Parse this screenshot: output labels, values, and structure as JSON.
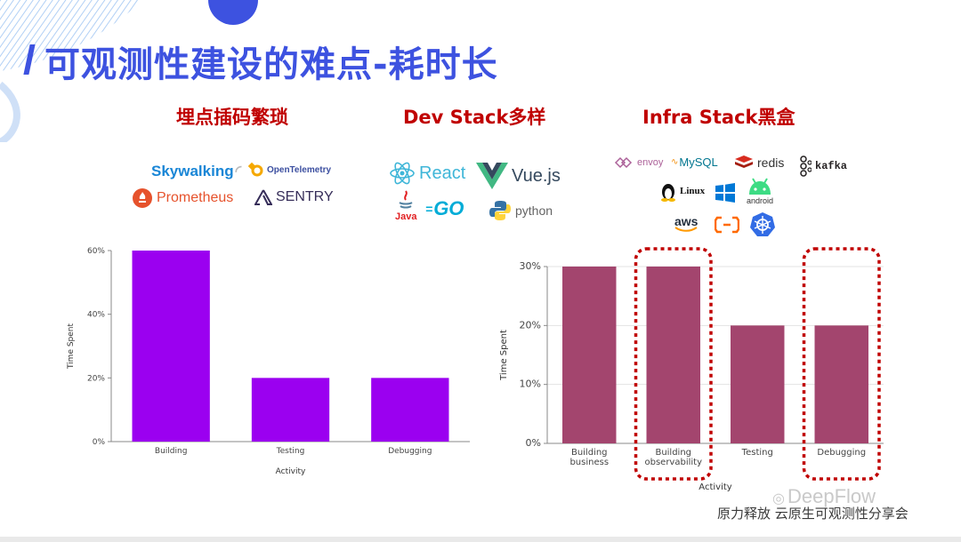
{
  "slide": {
    "title": "可观测性建设的难点-耗时长",
    "footer": "原力释放 云原生可观测性分享会",
    "brand": "DeepFlow"
  },
  "sections": [
    {
      "heading": "埋点插码繁琐",
      "logos": [
        {
          "name": "skywalking-logo",
          "text": "Skywalking",
          "color": "#1a86d6"
        },
        {
          "name": "opentelemetry-logo",
          "text": "OpenTelemetry",
          "color": "#3c4fa0"
        },
        {
          "name": "prometheus-logo",
          "text": "Prometheus",
          "color": "#e6522c"
        },
        {
          "name": "sentry-logo",
          "text": "SENTRY",
          "color": "#362d59"
        }
      ]
    },
    {
      "heading": "Dev Stack多样",
      "logos": [
        {
          "name": "react-logo",
          "text": "React",
          "color": "#3fb6d8"
        },
        {
          "name": "vuejs-logo",
          "text": "Vue.js",
          "color": "#35495e"
        },
        {
          "name": "java-logo",
          "text": "Java",
          "color": "#e11f21"
        },
        {
          "name": "go-logo",
          "text": "GO",
          "color": "#00acd7"
        },
        {
          "name": "python-logo",
          "text": "python",
          "color": "#646464"
        }
      ]
    },
    {
      "heading": "Infra Stack黑盒",
      "logos": [
        {
          "name": "envoy-logo",
          "text": "envoy",
          "color": "#ac6199"
        },
        {
          "name": "mysql-logo",
          "text": "MySQL",
          "color": "#00758f"
        },
        {
          "name": "redis-logo",
          "text": "redis",
          "color": "#d82c20"
        },
        {
          "name": "kafka-logo",
          "text": "kafka",
          "color": "#231f20"
        },
        {
          "name": "linux-logo",
          "text": "Linux",
          "color": "#111111"
        },
        {
          "name": "windows-logo",
          "text": "",
          "color": "#0078d6"
        },
        {
          "name": "android-logo",
          "text": "android",
          "color": "#3ddc84"
        },
        {
          "name": "aws-logo",
          "text": "aws",
          "color": "#232f3e"
        },
        {
          "name": "alibaba-cloud-logo",
          "text": "",
          "color": "#ff6a00"
        },
        {
          "name": "kubernetes-logo",
          "text": "",
          "color": "#326ce5"
        }
      ]
    }
  ],
  "chart_data": [
    {
      "type": "bar",
      "categories": [
        "Building",
        "Testing",
        "Debugging"
      ],
      "values": [
        60,
        20,
        20
      ],
      "xlabel": "Activity",
      "ylabel": "Time Spent",
      "ylim": [
        0,
        60
      ],
      "yticks": [
        "0%",
        "20%",
        "40%",
        "60%"
      ],
      "grid": false,
      "color": "#9b00f0"
    },
    {
      "type": "bar",
      "categories": [
        "Building business",
        "Building observability",
        "Testing",
        "Debugging"
      ],
      "values": [
        30,
        30,
        20,
        20
      ],
      "xlabel": "Activity",
      "ylabel": "Time Spent",
      "ylim": [
        0,
        30
      ],
      "yticks": [
        "0%",
        "10%",
        "20%",
        "30%"
      ],
      "grid": true,
      "color": "#a3456e",
      "highlight": [
        "Building observability",
        "Debugging"
      ],
      "highlight_color": "#c00000"
    }
  ]
}
